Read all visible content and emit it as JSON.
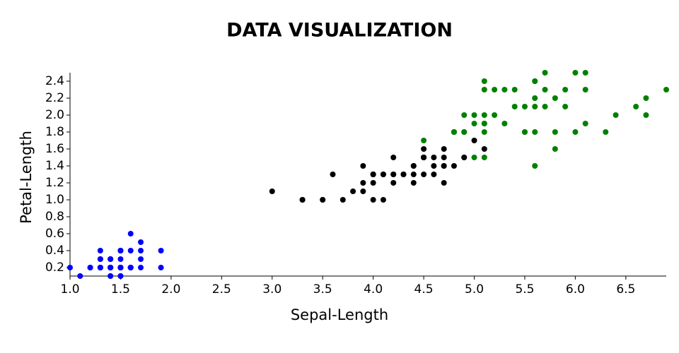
{
  "chart_data": {
    "type": "scatter",
    "title": "DATA VISUALIZATION",
    "x_label": "Sepal-Length",
    "y_label": "Petal-Length",
    "xlim": [
      1.0,
      6.9
    ],
    "ylim": [
      0.1,
      2.5
    ],
    "xticks": [
      {
        "value": 1.0,
        "label": "1.0"
      },
      1.5,
      {
        "value": 2.0,
        "label": "2.0"
      },
      2.5,
      {
        "value": 3.0,
        "label": "3.0"
      },
      3.5,
      {
        "value": 4.0,
        "label": "4.0"
      },
      4.5,
      {
        "value": 5.0,
        "label": "5.0"
      },
      5.5,
      {
        "value": 6.0,
        "label": "6.0"
      },
      6.5
    ],
    "yticks": [
      0.2,
      0.4,
      0.6,
      0.8,
      {
        "value": 1.0,
        "label": "1.0"
      },
      1.2,
      1.4,
      1.6,
      1.8,
      {
        "value": 2.0,
        "label": "2.0"
      },
      2.2,
      2.4
    ],
    "series": [
      {
        "color": "#0000ff",
        "x": [
          1.4,
          1.4,
          1.3,
          1.5,
          1.4,
          1.7,
          1.4,
          1.5,
          1.4,
          1.5,
          1.5,
          1.6,
          1.4,
          1.1,
          1.2,
          1.5,
          1.3,
          1.4,
          1.7,
          1.5,
          1.7,
          1.5,
          1.0,
          1.7,
          1.9,
          1.6,
          1.6,
          1.5,
          1.4,
          1.6,
          1.6,
          1.5,
          1.5,
          1.4,
          1.5,
          1.2,
          1.3,
          1.4,
          1.3,
          1.5,
          1.3,
          1.3,
          1.3,
          1.6,
          1.9,
          1.4,
          1.6,
          1.4,
          1.5,
          1.4
        ],
        "values": [
          0.2,
          0.2,
          0.2,
          0.2,
          0.2,
          0.4,
          0.3,
          0.2,
          0.2,
          0.1,
          0.2,
          0.2,
          0.1,
          0.1,
          0.2,
          0.4,
          0.4,
          0.3,
          0.3,
          0.3,
          0.2,
          0.4,
          0.2,
          0.5,
          0.2,
          0.2,
          0.4,
          0.2,
          0.2,
          0.2,
          0.2,
          0.4,
          0.1,
          0.2,
          0.2,
          0.2,
          0.2,
          0.1,
          0.2,
          0.2,
          0.3,
          0.3,
          0.2,
          0.6,
          0.4,
          0.3,
          0.2,
          0.2,
          0.2,
          0.2
        ]
      },
      {
        "color": "#000000",
        "x": [
          4.7,
          4.5,
          4.9,
          4.0,
          4.6,
          4.5,
          4.7,
          3.3,
          4.6,
          3.9,
          3.5,
          4.2,
          4.0,
          4.7,
          3.6,
          4.4,
          4.5,
          4.1,
          4.5,
          3.9,
          4.8,
          4.0,
          4.9,
          4.7,
          4.3,
          4.4,
          4.8,
          5.0,
          4.5,
          3.5,
          3.8,
          3.7,
          3.9,
          5.1,
          4.5,
          4.5,
          4.7,
          4.4,
          4.1,
          4.0,
          4.4,
          4.6,
          4.0,
          3.3,
          4.2,
          4.2,
          4.2,
          4.3,
          3.0,
          4.1
        ],
        "values": [
          1.4,
          1.5,
          1.5,
          1.3,
          1.5,
          1.3,
          1.6,
          1.0,
          1.3,
          1.4,
          1.0,
          1.5,
          1.0,
          1.4,
          1.3,
          1.4,
          1.5,
          1.0,
          1.5,
          1.1,
          1.8,
          1.3,
          1.5,
          1.2,
          1.3,
          1.4,
          1.4,
          1.7,
          1.5,
          1.0,
          1.1,
          1.0,
          1.2,
          1.6,
          1.5,
          1.6,
          1.5,
          1.3,
          1.3,
          1.3,
          1.2,
          1.4,
          1.2,
          1.0,
          1.3,
          1.2,
          1.3,
          1.3,
          1.1,
          1.3
        ]
      },
      {
        "color": "#008000",
        "x": [
          6.0,
          5.1,
          5.9,
          5.6,
          5.8,
          6.6,
          4.5,
          6.3,
          5.8,
          6.1,
          5.1,
          5.3,
          5.5,
          5.0,
          5.1,
          5.3,
          5.5,
          6.7,
          6.9,
          5.0,
          5.7,
          4.9,
          6.7,
          4.9,
          5.7,
          6.0,
          4.8,
          4.9,
          5.6,
          5.8,
          6.1,
          6.4,
          5.6,
          5.1,
          5.6,
          6.1,
          5.6,
          5.5,
          4.8,
          5.4,
          5.6,
          5.1,
          5.1,
          5.9,
          5.7,
          5.2,
          5.0,
          5.2,
          5.4,
          5.1
        ],
        "values": [
          2.5,
          1.9,
          2.1,
          1.8,
          2.2,
          2.1,
          1.7,
          1.8,
          1.8,
          2.5,
          2.0,
          1.9,
          2.1,
          2.0,
          2.4,
          2.3,
          1.8,
          2.2,
          2.3,
          1.5,
          2.3,
          2.0,
          2.0,
          1.8,
          2.1,
          1.8,
          1.8,
          1.8,
          2.1,
          1.6,
          1.9,
          2.0,
          2.2,
          1.5,
          1.4,
          2.3,
          2.4,
          1.8,
          1.8,
          2.1,
          2.4,
          2.3,
          1.9,
          2.3,
          2.5,
          2.3,
          1.9,
          2.0,
          2.3,
          1.8
        ]
      }
    ]
  }
}
